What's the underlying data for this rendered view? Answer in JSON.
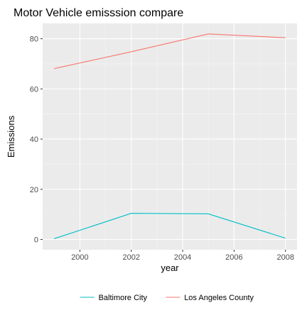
{
  "chart_data": {
    "type": "line",
    "title": "Motor Vehicle emisssion compare",
    "xlabel": "year",
    "ylabel": "Emissions",
    "xlim": [
      1998.55,
      2008.45
    ],
    "ylim": [
      -4.1,
      86.1
    ],
    "x_ticks": [
      2000,
      2002,
      2004,
      2006,
      2008
    ],
    "y_ticks": [
      0,
      20,
      40,
      60,
      80
    ],
    "grid": true,
    "legend_position": "bottom",
    "series": [
      {
        "name": "Baltimore City",
        "color": "#00bfc4",
        "x": [
          1999,
          2002,
          2005,
          2008
        ],
        "y": [
          0.3,
          10.4,
          10.2,
          0.5
        ]
      },
      {
        "name": "Los Angeles County",
        "color": "#f8766d",
        "x": [
          1999,
          2002,
          2005,
          2008
        ],
        "y": [
          68.1,
          74.8,
          81.9,
          80.4
        ]
      }
    ]
  }
}
